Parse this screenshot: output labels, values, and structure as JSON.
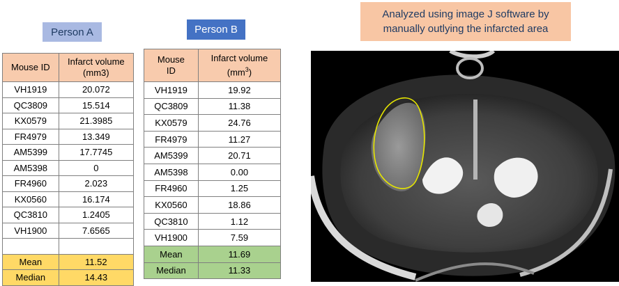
{
  "person_a": {
    "label": "Person A",
    "headers": [
      "Mouse ID",
      "Infarct volume (mm3)"
    ],
    "rows": [
      [
        "VH1919",
        "20.072"
      ],
      [
        "QC3809",
        "15.514"
      ],
      [
        "KX0579",
        "21.3985"
      ],
      [
        "FR4979",
        "13.349"
      ],
      [
        "AM5399",
        "17.7745"
      ],
      [
        "AM5398",
        "0"
      ],
      [
        "FR4960",
        "2.023"
      ],
      [
        "KX0560",
        "16.174"
      ],
      [
        "QC3810",
        "1.2405"
      ],
      [
        "VH1900",
        "7.6565"
      ]
    ],
    "mean_label": "Mean",
    "mean": "11.52",
    "median_label": "Median",
    "median": "14.43"
  },
  "person_b": {
    "label": "Person B",
    "headers": [
      "Mouse ID",
      "Infarct volume (mm",
      "3",
      ")"
    ],
    "rows": [
      [
        "VH1919",
        "19.92"
      ],
      [
        "QC3809",
        "11.38"
      ],
      [
        "KX0579",
        "24.76"
      ],
      [
        "FR4979",
        "11.27"
      ],
      [
        "AM5399",
        "20.71"
      ],
      [
        "AM5398",
        "0.00"
      ],
      [
        "FR4960",
        "1.25"
      ],
      [
        "KX0560",
        "18.86"
      ],
      [
        "QC3810",
        "1.12"
      ],
      [
        "VH1900",
        "7.59"
      ]
    ],
    "mean_label": "Mean",
    "mean": "11.69",
    "median_label": "Median",
    "median": "11.33"
  },
  "note": "Analyzed using image J software by manually outlying the infarcted area",
  "colors": {
    "header_fill": "#f8cbad",
    "summary_a_fill": "#ffd966",
    "summary_b_fill": "#a9d18e",
    "outline": "#e6e600"
  }
}
